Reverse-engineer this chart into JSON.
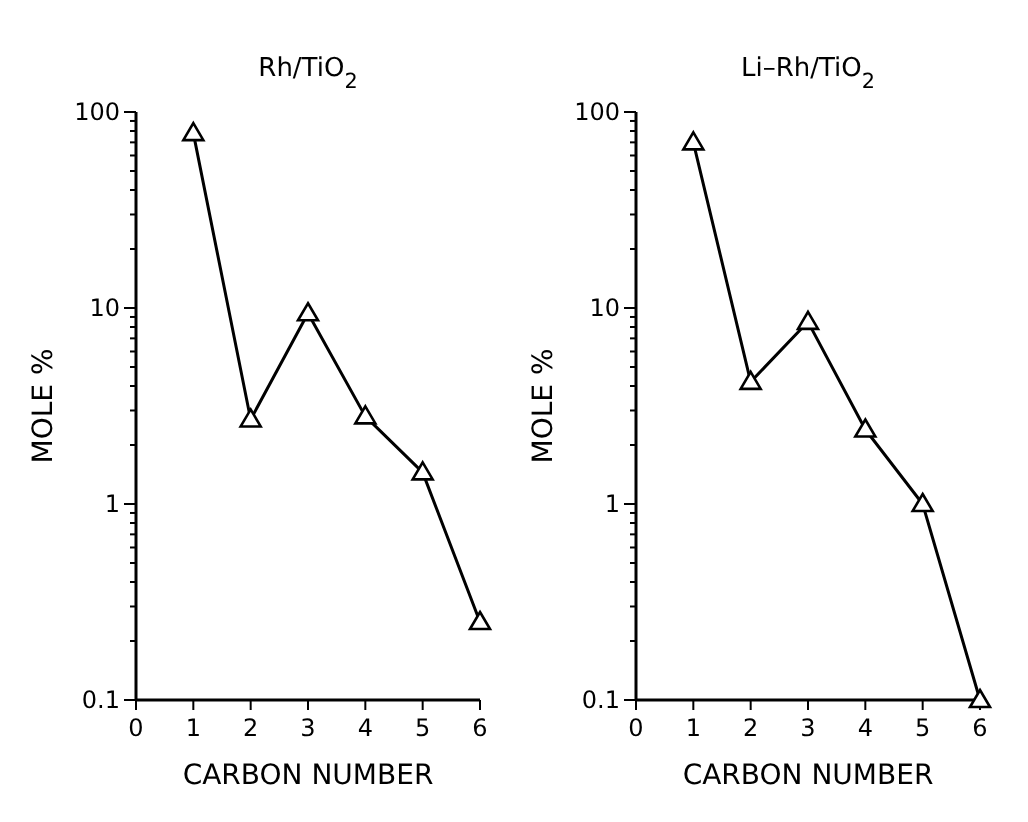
{
  "chart_data": [
    {
      "type": "line",
      "title": "Rh/TiO$_{2}$",
      "xlabel": "CARBON NUMBER",
      "ylabel": "MOLE %",
      "log": true,
      "marker": "triangle",
      "line_style": "solid",
      "x": [
        1,
        2,
        3,
        4,
        5,
        6
      ],
      "xlim": [
        0,
        6
      ],
      "xticks": [
        0,
        1,
        2,
        3,
        4,
        5,
        6
      ],
      "ylim": [
        0.1,
        100
      ],
      "yticks": [
        0.1,
        {
          "value": 0.2,
          "label": null
        },
        {
          "value": 0.3,
          "label": null
        },
        {
          "value": 0.4,
          "label": null
        },
        {
          "value": 0.5,
          "label": null
        },
        {
          "value": 0.6,
          "label": null
        },
        {
          "value": 0.7,
          "label": null
        },
        {
          "value": 0.8,
          "label": null
        },
        {
          "value": 0.9,
          "label": null
        },
        1,
        {
          "value": 2,
          "label": null
        },
        {
          "value": 3,
          "label": null
        },
        {
          "value": 4,
          "label": null
        },
        {
          "value": 5,
          "label": null
        },
        {
          "value": 6,
          "label": null
        },
        {
          "value": 7,
          "label": null
        },
        {
          "value": 8,
          "label": null
        },
        {
          "value": 9,
          "label": null
        },
        10,
        {
          "value": 20,
          "label": null
        },
        {
          "value": 30,
          "label": null
        },
        {
          "value": 40,
          "label": null
        },
        {
          "value": 50,
          "label": null
        },
        {
          "value": 60,
          "label": null
        },
        {
          "value": 70,
          "label": null
        },
        {
          "value": 80,
          "label": null
        },
        {
          "value": 90,
          "label": null
        },
        100
      ],
      "series": [
        {
          "color": "#000000",
          "values": [
            78,
            2.7,
            9.4,
            2.8,
            1.45,
            0.25
          ]
        }
      ]
    },
    {
      "type": "line",
      "title": "Li–Rh/TiO$_{2}$",
      "xlabel": "CARBON NUMBER",
      "ylabel": "MOLE %",
      "log": true,
      "marker": "triangle",
      "line_style": "solid",
      "x": [
        1,
        2,
        3,
        4,
        5,
        6
      ],
      "xlim": [
        0,
        6
      ],
      "xticks": [
        0,
        1,
        2,
        3,
        4,
        5,
        6
      ],
      "ylim": [
        0.1,
        100
      ],
      "yticks": [
        0.1,
        {
          "value": 0.2,
          "label": null
        },
        {
          "value": 0.3,
          "label": null
        },
        {
          "value": 0.4,
          "label": null
        },
        {
          "value": 0.5,
          "label": null
        },
        {
          "value": 0.6,
          "label": null
        },
        {
          "value": 0.7,
          "label": null
        },
        {
          "value": 0.8,
          "label": null
        },
        {
          "value": 0.9,
          "label": null
        },
        1,
        {
          "value": 2,
          "label": null
        },
        {
          "value": 3,
          "label": null
        },
        {
          "value": 4,
          "label": null
        },
        {
          "value": 5,
          "label": null
        },
        {
          "value": 6,
          "label": null
        },
        {
          "value": 7,
          "label": null
        },
        {
          "value": 8,
          "label": null
        },
        {
          "value": 9,
          "label": null
        },
        10,
        {
          "value": 20,
          "label": null
        },
        {
          "value": 30,
          "label": null
        },
        {
          "value": 40,
          "label": null
        },
        {
          "value": 50,
          "label": null
        },
        {
          "value": 60,
          "label": null
        },
        {
          "value": 70,
          "label": null
        },
        {
          "value": 80,
          "label": null
        },
        {
          "value": 90,
          "label": null
        },
        100
      ],
      "series": [
        {
          "color": "#000000",
          "values": [
            70,
            4.2,
            8.5,
            2.4,
            1.0,
            0.1
          ]
        }
      ]
    }
  ]
}
